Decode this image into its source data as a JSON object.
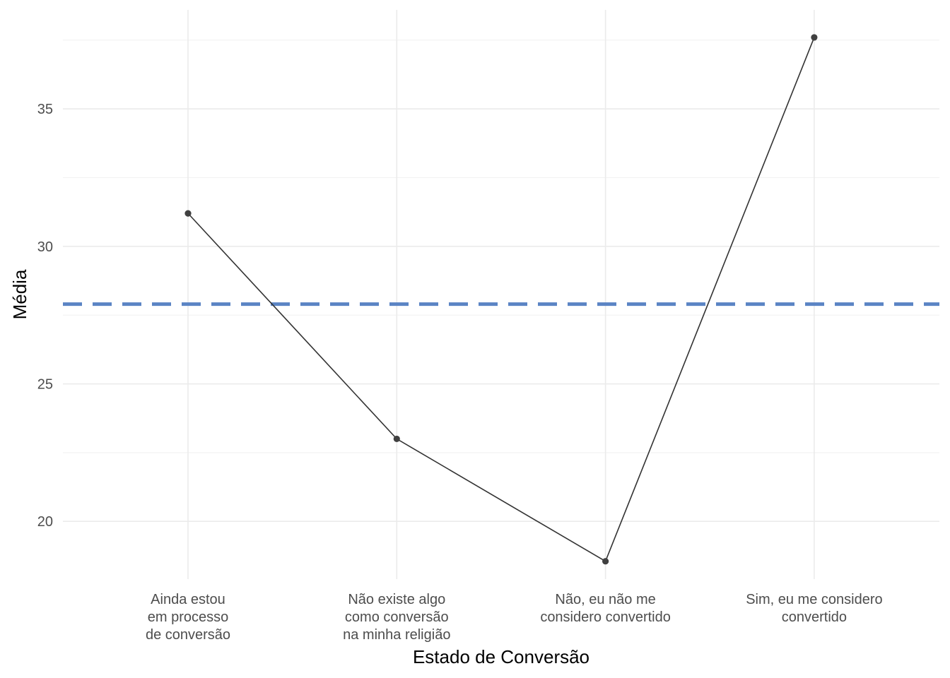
{
  "chart_data": {
    "type": "line",
    "title": "",
    "xlabel": "Estado de Conversão",
    "ylabel": "Média",
    "categories": [
      [
        "Ainda estou",
        "em processo",
        "de conversão"
      ],
      [
        "Não existe algo",
        "como conversão",
        "na minha religião"
      ],
      [
        "Não, eu não me",
        "considero convertido"
      ],
      [
        "Sim, eu me considero",
        "convertido"
      ]
    ],
    "values": [
      31.2,
      23.0,
      18.55,
      37.6
    ],
    "reference_line": {
      "value": 27.9,
      "style": "dashed",
      "color": "#5B84C4"
    },
    "ylim": [
      17.9,
      38.6
    ],
    "yticks": [
      20,
      25,
      30,
      35
    ],
    "grid": true,
    "line_color": "#333333",
    "point_color": "#404040"
  }
}
